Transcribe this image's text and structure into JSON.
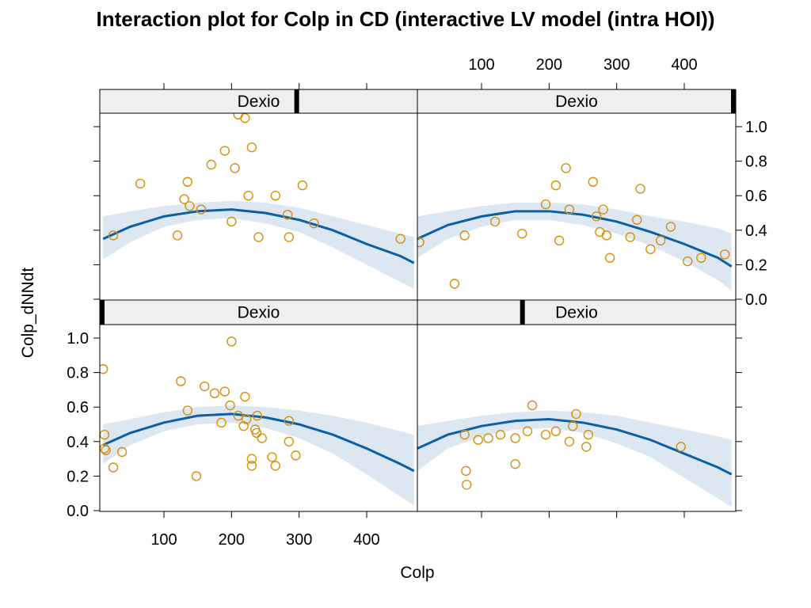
{
  "title": "Interaction plot for Colp in CD (interactive LV model (intra HOI))",
  "xlabel": "Colp",
  "ylabel": "Colp_dNNdt",
  "colors": {
    "points": "#D4900A",
    "fit": "#0B5FA5",
    "band": "#DCE7F2",
    "strip_bg": "#EFEFEF"
  },
  "chart_data": {
    "type": "scatter",
    "layout": "2x2 trellis",
    "xlim": [
      0,
      475
    ],
    "ylim": [
      0.0,
      1.08
    ],
    "xticks": [
      100,
      200,
      300,
      400
    ],
    "yticks": [
      0.0,
      0.2,
      0.4,
      0.6,
      0.8,
      1.0
    ],
    "xtick_labels": [
      "100",
      "200",
      "300",
      "400"
    ],
    "ytick_labels": [
      "0.0",
      "0.2",
      "0.4",
      "0.6",
      "0.8",
      "1.0"
    ],
    "panels": [
      {
        "position": "top-left",
        "strip_label": "Dexio",
        "strip_level": 0.62,
        "points": [
          [
            25,
            0.37
          ],
          [
            65,
            0.67
          ],
          [
            120,
            0.37
          ],
          [
            130,
            0.58
          ],
          [
            135,
            0.68
          ],
          [
            138,
            0.54
          ],
          [
            155,
            0.52
          ],
          [
            170,
            0.78
          ],
          [
            190,
            0.86
          ],
          [
            200,
            0.45
          ],
          [
            205,
            0.76
          ],
          [
            210,
            1.07
          ],
          [
            220,
            1.05
          ],
          [
            225,
            0.6
          ],
          [
            230,
            0.88
          ],
          [
            240,
            0.36
          ],
          [
            265,
            0.6
          ],
          [
            283,
            0.49
          ],
          [
            285,
            0.36
          ],
          [
            305,
            0.66
          ],
          [
            322,
            0.44
          ],
          [
            450,
            0.35
          ]
        ],
        "fit": [
          [
            10,
            0.35
          ],
          [
            50,
            0.42
          ],
          [
            100,
            0.48
          ],
          [
            150,
            0.51
          ],
          [
            200,
            0.52
          ],
          [
            250,
            0.5
          ],
          [
            300,
            0.46
          ],
          [
            350,
            0.4
          ],
          [
            400,
            0.32
          ],
          [
            450,
            0.25
          ],
          [
            470,
            0.21
          ]
        ],
        "band_upper": [
          [
            10,
            0.48
          ],
          [
            50,
            0.51
          ],
          [
            100,
            0.54
          ],
          [
            150,
            0.56
          ],
          [
            200,
            0.57
          ],
          [
            250,
            0.56
          ],
          [
            300,
            0.53
          ],
          [
            350,
            0.48
          ],
          [
            400,
            0.43
          ],
          [
            450,
            0.38
          ],
          [
            470,
            0.36
          ]
        ],
        "band_lower": [
          [
            10,
            0.23
          ],
          [
            50,
            0.33
          ],
          [
            100,
            0.42
          ],
          [
            150,
            0.46
          ],
          [
            200,
            0.47
          ],
          [
            250,
            0.44
          ],
          [
            300,
            0.39
          ],
          [
            350,
            0.3
          ],
          [
            400,
            0.2
          ],
          [
            450,
            0.1
          ],
          [
            470,
            0.06
          ]
        ]
      },
      {
        "position": "top-right",
        "strip_label": "Dexio",
        "strip_level": 1.0,
        "points": [
          [
            8,
            0.33
          ],
          [
            60,
            0.09
          ],
          [
            75,
            0.37
          ],
          [
            120,
            0.45
          ],
          [
            160,
            0.38
          ],
          [
            195,
            0.55
          ],
          [
            210,
            0.66
          ],
          [
            215,
            0.34
          ],
          [
            225,
            0.76
          ],
          [
            230,
            0.52
          ],
          [
            265,
            0.68
          ],
          [
            270,
            0.48
          ],
          [
            275,
            0.39
          ],
          [
            280,
            0.52
          ],
          [
            285,
            0.37
          ],
          [
            290,
            0.24
          ],
          [
            320,
            0.36
          ],
          [
            330,
            0.46
          ],
          [
            335,
            0.64
          ],
          [
            350,
            0.29
          ],
          [
            365,
            0.34
          ],
          [
            380,
            0.42
          ],
          [
            405,
            0.22
          ],
          [
            425,
            0.24
          ],
          [
            460,
            0.26
          ]
        ],
        "fit": [
          [
            5,
            0.35
          ],
          [
            50,
            0.43
          ],
          [
            100,
            0.48
          ],
          [
            150,
            0.51
          ],
          [
            200,
            0.51
          ],
          [
            250,
            0.49
          ],
          [
            300,
            0.45
          ],
          [
            350,
            0.39
          ],
          [
            400,
            0.32
          ],
          [
            450,
            0.24
          ],
          [
            470,
            0.19
          ]
        ],
        "band_upper": [
          [
            5,
            0.48
          ],
          [
            50,
            0.51
          ],
          [
            100,
            0.54
          ],
          [
            150,
            0.56
          ],
          [
            200,
            0.56
          ],
          [
            250,
            0.55
          ],
          [
            300,
            0.52
          ],
          [
            350,
            0.48
          ],
          [
            400,
            0.45
          ],
          [
            450,
            0.41
          ],
          [
            470,
            0.38
          ]
        ],
        "band_lower": [
          [
            5,
            0.24
          ],
          [
            50,
            0.35
          ],
          [
            100,
            0.42
          ],
          [
            150,
            0.46
          ],
          [
            200,
            0.46
          ],
          [
            250,
            0.43
          ],
          [
            300,
            0.38
          ],
          [
            350,
            0.31
          ],
          [
            400,
            0.22
          ],
          [
            450,
            0.11
          ],
          [
            470,
            0.05
          ]
        ]
      },
      {
        "position": "bottom-left",
        "strip_label": "Dexio",
        "strip_level": 0.0,
        "points": [
          [
            10,
            0.82
          ],
          [
            12,
            0.44
          ],
          [
            12,
            0.36
          ],
          [
            14,
            0.35
          ],
          [
            25,
            0.25
          ],
          [
            38,
            0.34
          ],
          [
            125,
            0.75
          ],
          [
            135,
            0.58
          ],
          [
            148,
            0.2
          ],
          [
            160,
            0.72
          ],
          [
            175,
            0.68
          ],
          [
            185,
            0.51
          ],
          [
            190,
            0.69
          ],
          [
            198,
            0.61
          ],
          [
            200,
            0.98
          ],
          [
            210,
            0.55
          ],
          [
            218,
            0.49
          ],
          [
            220,
            0.66
          ],
          [
            222,
            0.53
          ],
          [
            230,
            0.3
          ],
          [
            230,
            0.26
          ],
          [
            235,
            0.47
          ],
          [
            237,
            0.45
          ],
          [
            238,
            0.55
          ],
          [
            245,
            0.42
          ],
          [
            260,
            0.31
          ],
          [
            265,
            0.26
          ],
          [
            285,
            0.52
          ],
          [
            285,
            0.4
          ],
          [
            295,
            0.32
          ]
        ],
        "fit": [
          [
            10,
            0.38
          ],
          [
            50,
            0.45
          ],
          [
            100,
            0.51
          ],
          [
            150,
            0.55
          ],
          [
            200,
            0.56
          ],
          [
            250,
            0.54
          ],
          [
            300,
            0.5
          ],
          [
            350,
            0.44
          ],
          [
            400,
            0.36
          ],
          [
            450,
            0.27
          ],
          [
            470,
            0.23
          ]
        ],
        "band_upper": [
          [
            10,
            0.5
          ],
          [
            50,
            0.53
          ],
          [
            100,
            0.57
          ],
          [
            150,
            0.6
          ],
          [
            200,
            0.61
          ],
          [
            250,
            0.6
          ],
          [
            300,
            0.58
          ],
          [
            350,
            0.55
          ],
          [
            400,
            0.51
          ],
          [
            450,
            0.46
          ],
          [
            470,
            0.44
          ]
        ],
        "band_lower": [
          [
            10,
            0.27
          ],
          [
            50,
            0.38
          ],
          [
            100,
            0.46
          ],
          [
            150,
            0.5
          ],
          [
            200,
            0.51
          ],
          [
            250,
            0.48
          ],
          [
            300,
            0.42
          ],
          [
            350,
            0.33
          ],
          [
            400,
            0.21
          ],
          [
            450,
            0.08
          ],
          [
            470,
            0.03
          ]
        ]
      },
      {
        "position": "bottom-right",
        "strip_label": "Dexio",
        "strip_level": 0.33,
        "points": [
          [
            75,
            0.44
          ],
          [
            77,
            0.23
          ],
          [
            78,
            0.15
          ],
          [
            95,
            0.41
          ],
          [
            110,
            0.42
          ],
          [
            128,
            0.44
          ],
          [
            150,
            0.42
          ],
          [
            150,
            0.27
          ],
          [
            168,
            0.46
          ],
          [
            175,
            0.61
          ],
          [
            195,
            0.44
          ],
          [
            210,
            0.46
          ],
          [
            230,
            0.4
          ],
          [
            235,
            0.49
          ],
          [
            240,
            0.56
          ],
          [
            255,
            0.37
          ],
          [
            258,
            0.44
          ],
          [
            395,
            0.37
          ]
        ],
        "fit": [
          [
            5,
            0.36
          ],
          [
            50,
            0.44
          ],
          [
            100,
            0.49
          ],
          [
            150,
            0.52
          ],
          [
            200,
            0.53
          ],
          [
            250,
            0.51
          ],
          [
            300,
            0.47
          ],
          [
            350,
            0.41
          ],
          [
            400,
            0.33
          ],
          [
            450,
            0.25
          ],
          [
            470,
            0.21
          ]
        ],
        "band_upper": [
          [
            5,
            0.49
          ],
          [
            50,
            0.52
          ],
          [
            100,
            0.55
          ],
          [
            150,
            0.57
          ],
          [
            200,
            0.58
          ],
          [
            250,
            0.57
          ],
          [
            300,
            0.55
          ],
          [
            350,
            0.51
          ],
          [
            400,
            0.47
          ],
          [
            450,
            0.43
          ],
          [
            470,
            0.41
          ]
        ],
        "band_lower": [
          [
            5,
            0.23
          ],
          [
            50,
            0.36
          ],
          [
            100,
            0.43
          ],
          [
            150,
            0.47
          ],
          [
            200,
            0.48
          ],
          [
            250,
            0.45
          ],
          [
            300,
            0.39
          ],
          [
            350,
            0.31
          ],
          [
            400,
            0.19
          ],
          [
            450,
            0.07
          ],
          [
            470,
            0.02
          ]
        ]
      }
    ]
  }
}
